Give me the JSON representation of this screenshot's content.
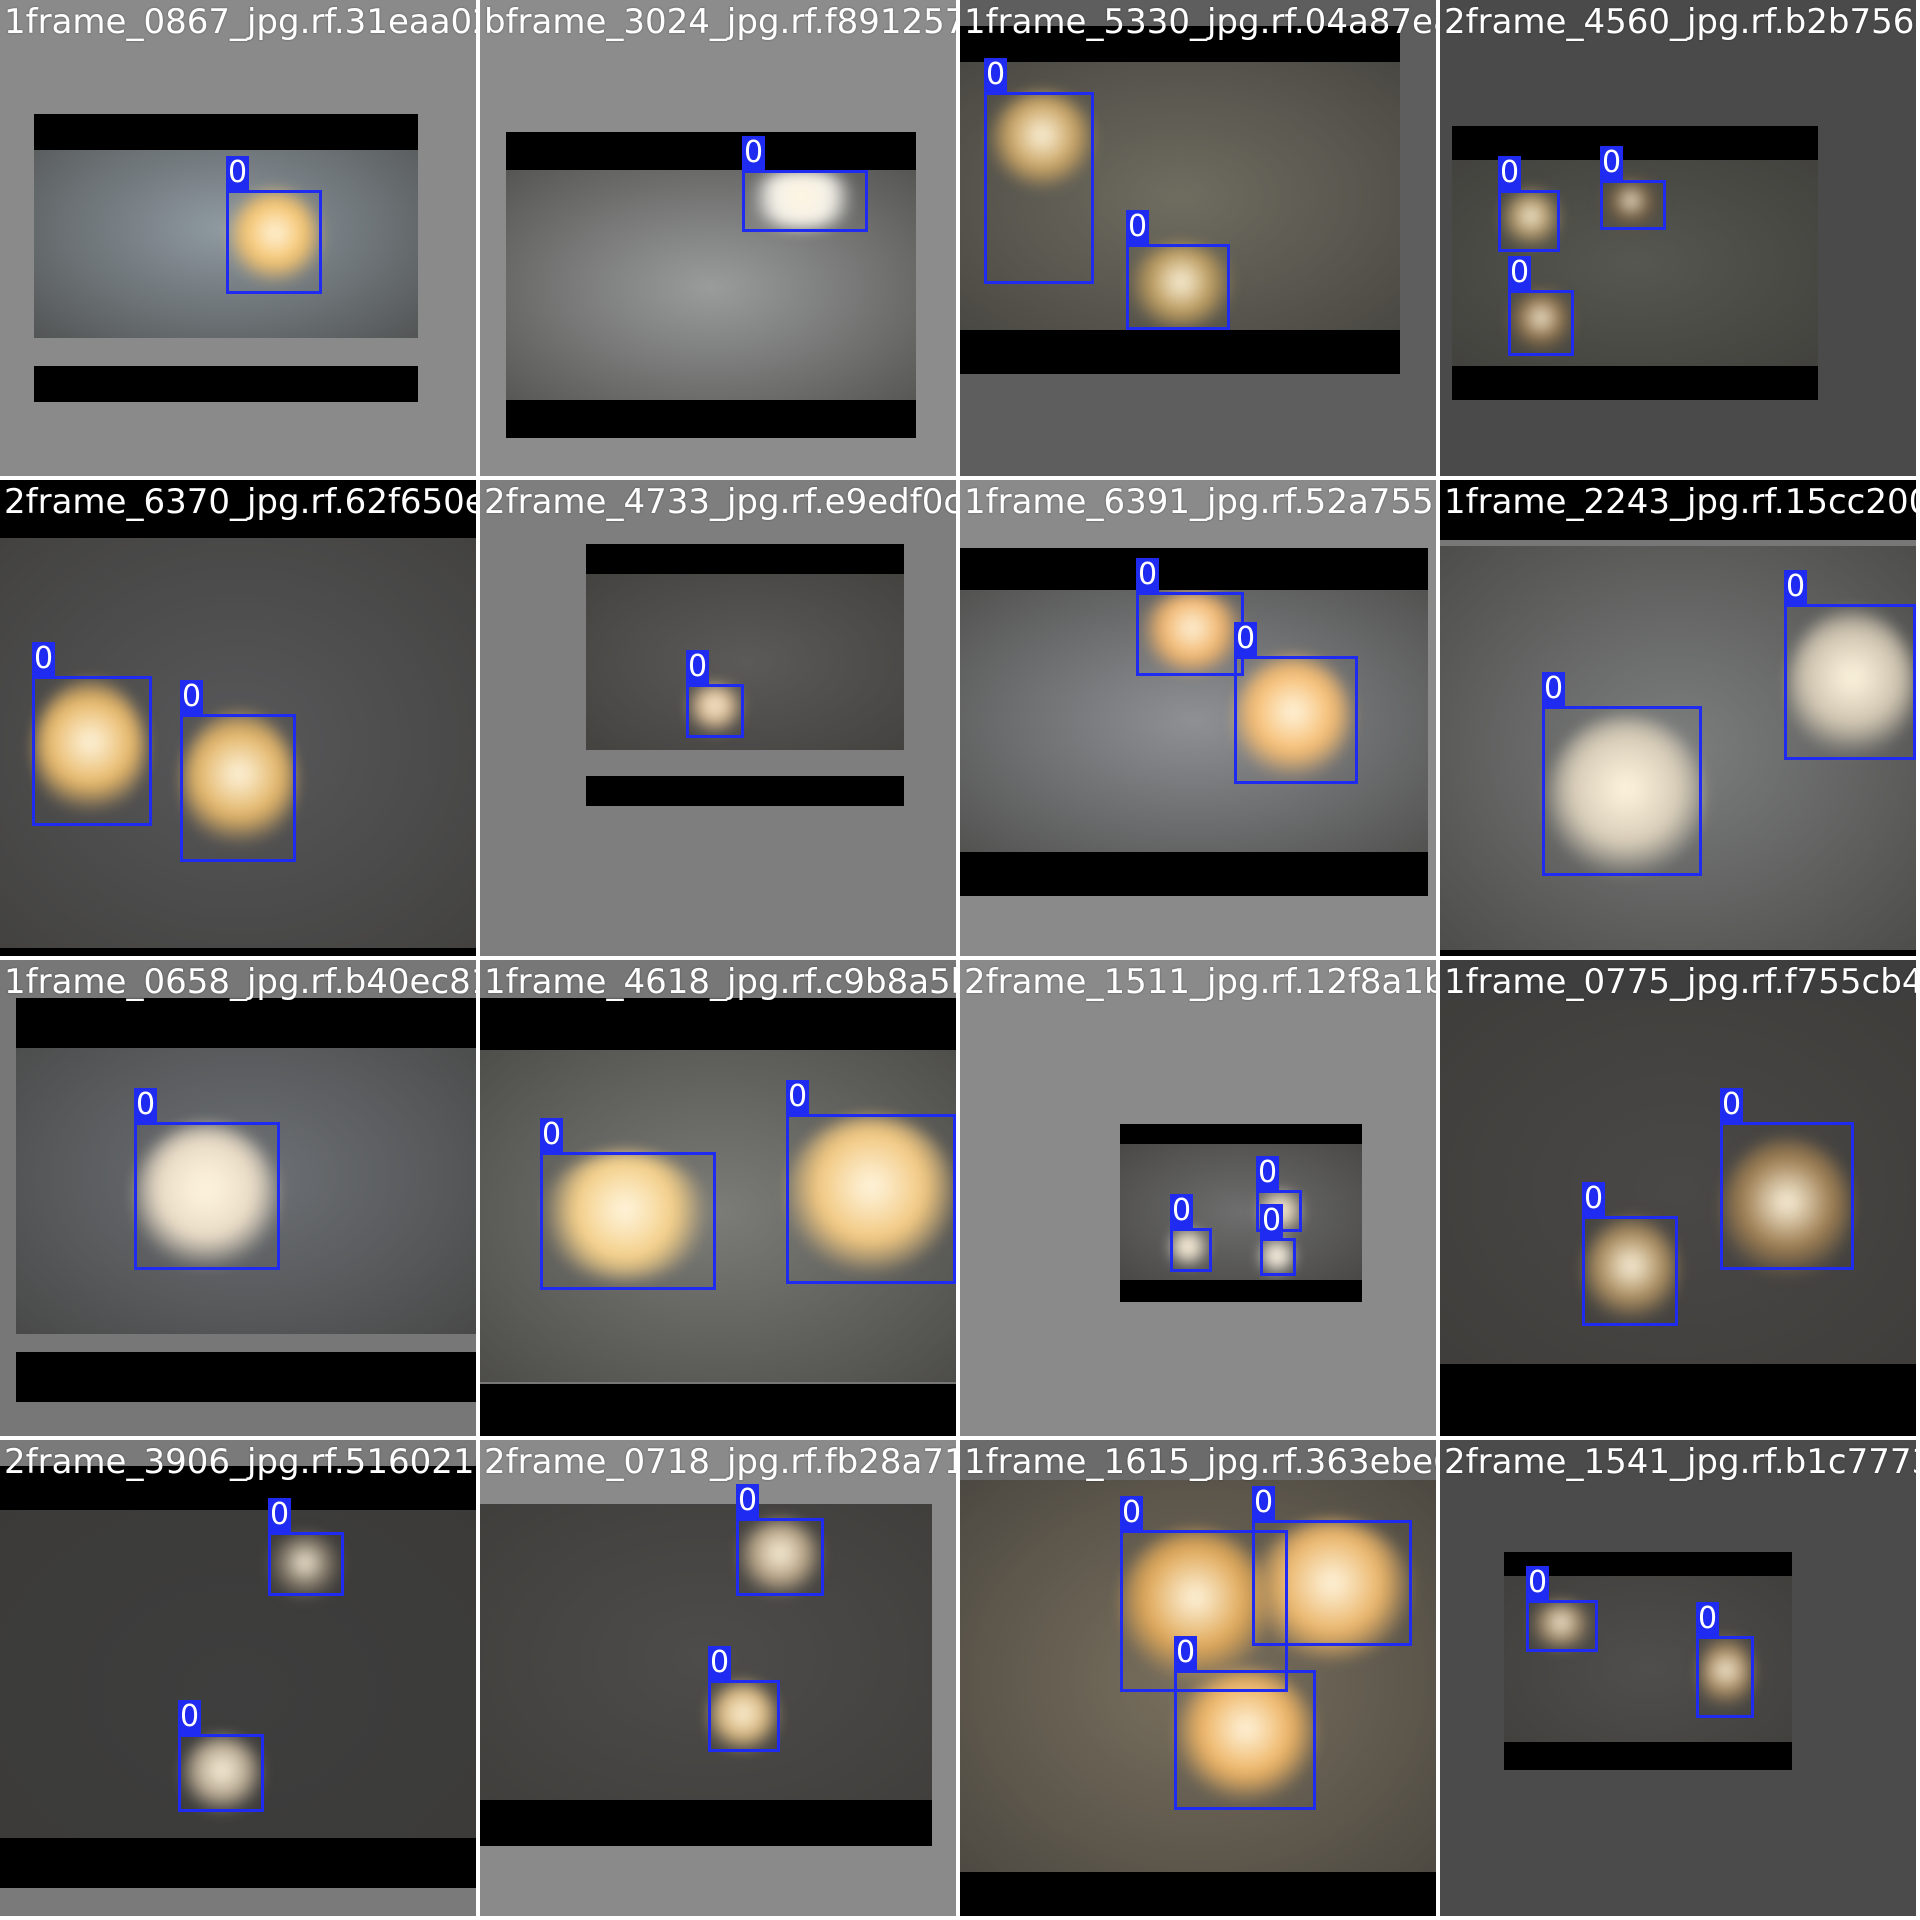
{
  "class_label": "0",
  "colors": {
    "box": "#1f2bf0",
    "label_bg": "#1f2bf0",
    "label_text": "#ffffff"
  },
  "tiles": [
    {
      "filename": "1frame_0867_jpg.rf.31eaa02b37fb5710242c",
      "boxes": 1
    },
    {
      "filename": "bframe_3024_jpg.rf.f8912574",
      "boxes": 1
    },
    {
      "filename": "1frame_5330_jpg.rf.04a87e8f93c0e4565033",
      "boxes": 2
    },
    {
      "filename": "2frame_4560_jpg.rf.b2b7565",
      "boxes": 3
    },
    {
      "filename": "2frame_6370_jpg.rf.62f650e2f1614734331b",
      "boxes": 2
    },
    {
      "filename": "2frame_4733_jpg.rf.e9edf0c7",
      "boxes": 1
    },
    {
      "filename": "1frame_6391_jpg.rf.52a7551f0427384366e6",
      "boxes": 2
    },
    {
      "filename": "1frame_2243_jpg.rf.15cc200",
      "boxes": 2
    },
    {
      "filename": "1frame_0658_jpg.rf.b40ec81d9be09a75f4879",
      "boxes": 1
    },
    {
      "filename": "1frame_4618_jpg.rf.c9b8a5b2fa1586f231dc",
      "boxes": 2
    },
    {
      "filename": "2frame_1511_jpg.rf.12f8a1b24a1d15405f2",
      "boxes": 3
    },
    {
      "filename": "1frame_0775_jpg.rf.f755cb4",
      "boxes": 2
    },
    {
      "filename": "2frame_3906_jpg.rf.516021dbdad22fdeb33e",
      "boxes": 2
    },
    {
      "filename": "2frame_0718_jpg.rf.fb28a719fe4ae06ad75be",
      "boxes": 2
    },
    {
      "filename": "1frame_1615_jpg.rf.363ebe6f6a88b5595f29",
      "boxes": 3
    },
    {
      "filename": "2frame_1541_jpg.rf.b1c7773",
      "boxes": 2
    }
  ]
}
